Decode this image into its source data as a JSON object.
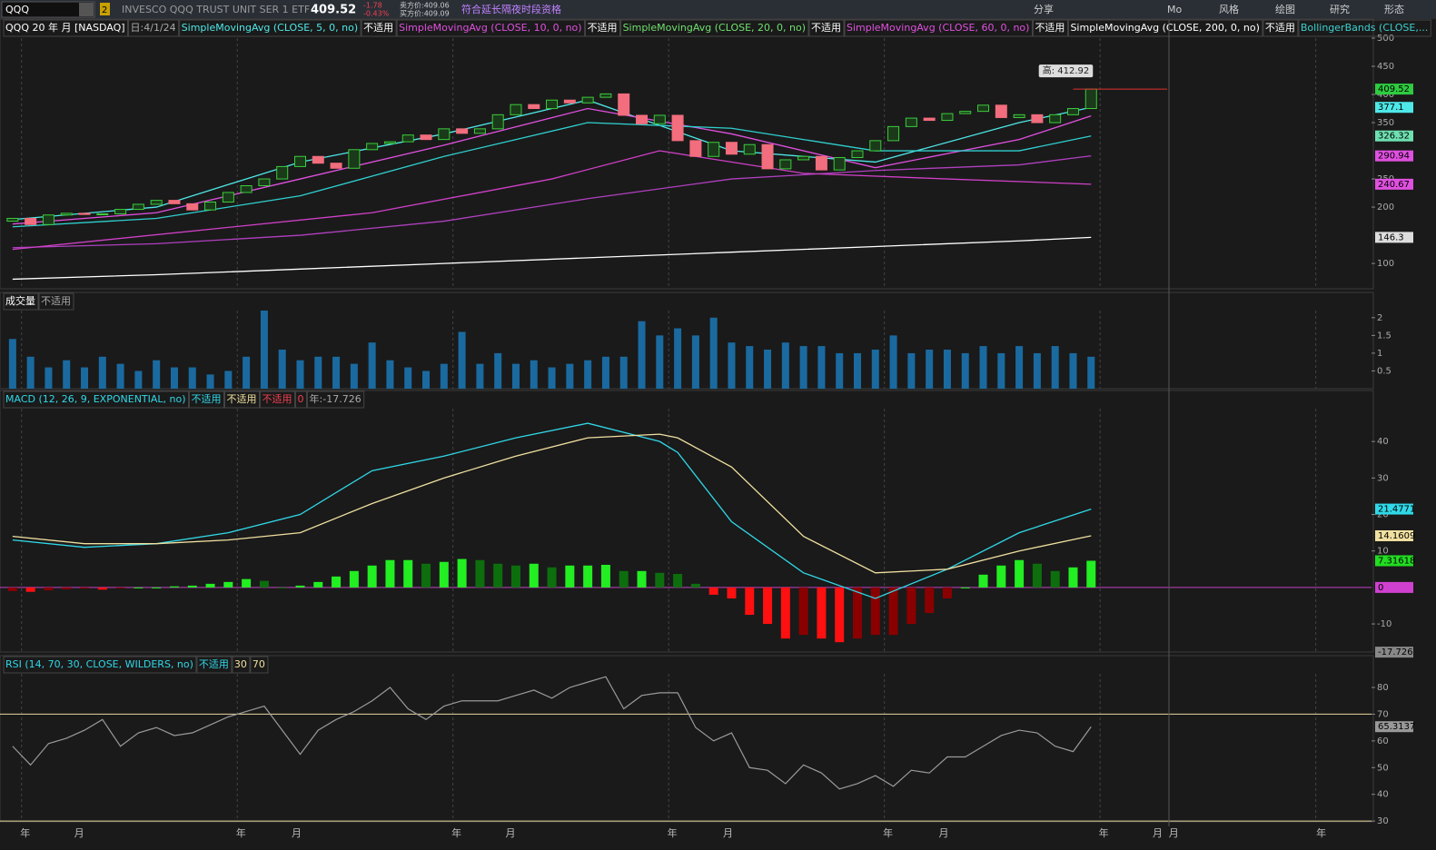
{
  "toolbar": {
    "symbol": "QQQ",
    "link": "2",
    "name": "INVESCO QQQ TRUST UNIT SER 1 ETF",
    "last": "409.52",
    "change": "-1.78",
    "change_pct": "-0.43%",
    "ask": "卖方价:409.06",
    "bid": "买方价:409.09",
    "eligibility": "符合延长隔夜时段资格",
    "buttons": [
      "分享",
      "Mo",
      "风格",
      "绘图",
      "研究",
      "形态"
    ]
  },
  "time_axis": {
    "xlim": [
      -0.7,
      75.6
    ],
    "xticks": [
      {
        "value": 0.7,
        "label": "年"
      },
      {
        "value": 3.7,
        "label": "月"
      },
      {
        "value": 12.7,
        "label": "年"
      },
      {
        "value": 15.8,
        "label": "月"
      },
      {
        "value": 24.7,
        "label": "年"
      },
      {
        "value": 27.7,
        "label": "月"
      },
      {
        "value": 36.7,
        "label": "年"
      },
      {
        "value": 39.8,
        "label": "月"
      },
      {
        "value": 48.7,
        "label": "年"
      },
      {
        "value": 51.8,
        "label": "月"
      },
      {
        "value": 60.7,
        "label": "年"
      },
      {
        "value": 63.7,
        "label": "月"
      },
      {
        "value": 64.6,
        "label": "月"
      },
      {
        "value": 72.8,
        "label": "年"
      }
    ],
    "grid": [
      0.5,
      12.5,
      24.5,
      36.5,
      48.5,
      60.5,
      72.5
    ]
  },
  "chart_data": [
    {
      "type": "candlestick",
      "title": "QQQ 20 年 月 [NASDAQ]",
      "date_label": "日:4/1/24",
      "high_label": "高: 412.92",
      "studies": [
        {
          "label": "SimpleMovingAvg (CLOSE, 5, 0, no)",
          "status": "不适用",
          "color": "#4ee8e8",
          "x": [
            0,
            8,
            16,
            24,
            32,
            40,
            48,
            56,
            60
          ],
          "values": [
            178,
            200,
            280,
            330,
            390,
            300,
            280,
            350,
            377.1
          ]
        },
        {
          "label": "SimpleMovingAvg (CLOSE, 10, 0, no)",
          "status": "不适用",
          "color": "#e050e0",
          "x": [
            0,
            8,
            16,
            24,
            32,
            40,
            48,
            56,
            60
          ],
          "values": [
            170,
            190,
            250,
            310,
            375,
            330,
            270,
            320,
            362
          ]
        },
        {
          "label": "SimpleMovingAvg (CLOSE, 20, 0, no)",
          "status": "不适用",
          "color": "#6ee06e",
          "line_color": "#30d0d0",
          "x": [
            0,
            8,
            16,
            24,
            32,
            40,
            48,
            56,
            60
          ],
          "values": [
            165,
            180,
            220,
            290,
            350,
            340,
            300,
            300,
            326.32
          ]
        },
        {
          "label": "SimpleMovingAvg (CLOSE, 60, 0, no)",
          "status": "不适用",
          "color": "#e050e0",
          "line_color": "#b040c0",
          "x": [
            0,
            8,
            16,
            24,
            32,
            40,
            48,
            56,
            60
          ],
          "values": [
            128,
            135,
            150,
            175,
            215,
            250,
            265,
            275,
            290.94
          ]
        },
        {
          "label": "SimpleMovingAvg (CLOSE, 200, 0, no)",
          "status": "不适用",
          "color": "#ffffff",
          "x": [
            0,
            8,
            16,
            24,
            32,
            40,
            48,
            56,
            60
          ],
          "values": [
            72,
            80,
            90,
            100,
            110,
            120,
            130,
            140,
            146.3
          ]
        },
        {
          "label": "BollingerBands (CLOSE,...",
          "color": "#3cd0d0",
          "line_color": "#d040c8",
          "x": [
            0,
            20,
            30,
            36,
            44,
            52,
            60
          ],
          "values": [
            125,
            190,
            250,
            300,
            260,
            250,
            240.67
          ]
        }
      ],
      "open": [
        175,
        180,
        169,
        186,
        189,
        187,
        188,
        196,
        205,
        212,
        206,
        195,
        209,
        226,
        238,
        250,
        272,
        290,
        278,
        269,
        302,
        313,
        316,
        328,
        320,
        339,
        331,
        339,
        364,
        382,
        375,
        390,
        385,
        395,
        401,
        363,
        348,
        363,
        318,
        290,
        315,
        294,
        311,
        268,
        284,
        290,
        266,
        288,
        300,
        318,
        343,
        358,
        354,
        366,
        370,
        381,
        359,
        364,
        350,
        364,
        375
      ],
      "close": [
        180,
        169,
        186,
        189,
        187,
        188,
        196,
        205,
        212,
        206,
        195,
        209,
        226,
        238,
        250,
        272,
        290,
        278,
        269,
        302,
        313,
        316,
        328,
        320,
        339,
        331,
        339,
        364,
        382,
        375,
        390,
        385,
        395,
        401,
        363,
        348,
        363,
        318,
        290,
        315,
        294,
        311,
        268,
        284,
        290,
        266,
        288,
        300,
        318,
        343,
        358,
        354,
        366,
        370,
        381,
        359,
        364,
        350,
        364,
        375,
        409.52
      ],
      "ylim": [
        55,
        500
      ],
      "yticks": [
        100,
        200,
        250,
        350,
        400,
        450,
        500
      ],
      "last_labels": [
        {
          "value": 409.52,
          "color": "#2ecc40"
        },
        {
          "value": 377.1,
          "color": "#4ee8e8"
        },
        {
          "value": 326.32,
          "color": "#6ee0b0"
        },
        {
          "value": 290.94,
          "color": "#e050e0"
        },
        {
          "value": 240.67,
          "color": "#e050e0"
        },
        {
          "value": 146.3,
          "color": "#dddddd"
        }
      ]
    },
    {
      "type": "bar",
      "title": "成交量",
      "status": "不适用",
      "color": "#1a6aa0",
      "values": [
        1.4,
        0.9,
        0.6,
        0.8,
        0.6,
        0.9,
        0.7,
        0.5,
        0.8,
        0.6,
        0.6,
        0.4,
        0.5,
        0.9,
        2.2,
        1.1,
        0.8,
        0.9,
        0.9,
        0.7,
        1.3,
        0.8,
        0.6,
        0.5,
        0.7,
        1.6,
        0.7,
        1.0,
        0.7,
        0.8,
        0.6,
        0.7,
        0.8,
        0.9,
        0.9,
        1.9,
        1.5,
        1.7,
        1.5,
        2.0,
        1.3,
        1.2,
        1.1,
        1.3,
        1.2,
        1.2,
        1.0,
        1.0,
        1.1,
        1.5,
        1.0,
        1.1,
        1.1,
        1.0,
        1.2,
        1.0,
        1.2,
        1.0,
        1.2,
        1.0,
        0.9
      ],
      "ylim": [
        0,
        2.2
      ],
      "yticks": [
        0.5,
        1,
        1.5,
        2
      ]
    },
    {
      "type": "macd",
      "title": "MACD (12, 26, 9, EXPONENTIAL, no)",
      "statuses": [
        "不适用",
        "不适用",
        "不适用"
      ],
      "zero": "0",
      "year_label": "年:-17.726",
      "series": [
        {
          "color": "#30d8e8",
          "x": [
            0,
            4,
            8,
            12,
            16,
            20,
            24,
            28,
            32,
            36,
            37,
            40,
            44,
            48,
            52,
            56,
            60
          ],
          "values": [
            13,
            11,
            12,
            15,
            20,
            32,
            36,
            41,
            45,
            40,
            37,
            18,
            4,
            -3,
            5,
            15,
            21.4771
          ]
        },
        {
          "color": "#f0e0a0",
          "x": [
            0,
            4,
            8,
            12,
            16,
            20,
            24,
            28,
            32,
            36,
            37,
            40,
            44,
            48,
            52,
            56,
            60
          ],
          "values": [
            14,
            12,
            12,
            13,
            15,
            23,
            30,
            36,
            41,
            42,
            41,
            33,
            14,
            4,
            5,
            10,
            14.1609
          ]
        }
      ],
      "histogram": [
        -1,
        -1.2,
        -0.8,
        -0.5,
        -0.3,
        -0.6,
        -0.2,
        0,
        0,
        0.3,
        0.5,
        1,
        1.5,
        2.3,
        1.8,
        0,
        0.5,
        1.5,
        3,
        4.5,
        6,
        7.5,
        7.5,
        6.5,
        7,
        7.8,
        7.5,
        6.5,
        6,
        6.5,
        5.5,
        6,
        6,
        6.2,
        4.5,
        4.5,
        4,
        3.7,
        1,
        -2,
        -3,
        -7.5,
        -10,
        -14,
        -13,
        -14,
        -15,
        -14,
        -13,
        -13,
        -10,
        -7,
        -3,
        0,
        3.5,
        6,
        7.5,
        6.5,
        4.5,
        5.5,
        7.31618
      ],
      "ylim": [
        -17.7,
        49
      ],
      "yticks": [
        -10,
        10,
        20,
        30,
        40
      ],
      "last_labels": [
        {
          "value": 21.4771,
          "color": "#30d8e8"
        },
        {
          "value": 14.1609,
          "color": "#f0e0a0"
        },
        {
          "value": 7.31618,
          "color": "#22dd22"
        },
        {
          "value": 0,
          "color": "#d040d0"
        },
        {
          "value": -17.726,
          "color": "#888888"
        }
      ]
    },
    {
      "type": "line",
      "title": "RSI (14, 70, 30, CLOSE, WILDERS, no)",
      "status": "不适用",
      "levels": [
        30,
        70
      ],
      "color": "#9a9a9a",
      "values": [
        58,
        51,
        59,
        61,
        64,
        68,
        58,
        63,
        65,
        62,
        63,
        66,
        69,
        71,
        73,
        64,
        55,
        64,
        68,
        71,
        75,
        80,
        72,
        68,
        73,
        75,
        75,
        75,
        77,
        79,
        76,
        80,
        82,
        84,
        72,
        77,
        78,
        78,
        65,
        60,
        63,
        50,
        49,
        44,
        51,
        48,
        42,
        44,
        47,
        43,
        49,
        48,
        54,
        54,
        58,
        62,
        64,
        63,
        58,
        56,
        65.3137
      ],
      "ylim": [
        29.7,
        85.1
      ],
      "yticks": [
        30,
        40,
        50,
        60,
        70,
        80
      ],
      "last_labels": [
        {
          "value": 65.3137,
          "color": "#999999"
        }
      ]
    }
  ]
}
